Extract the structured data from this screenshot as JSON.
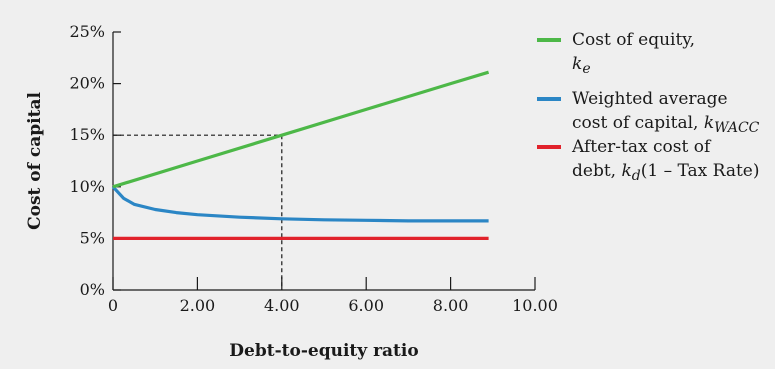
{
  "chart_data": {
    "type": "line",
    "title": "",
    "xlabel": "Debt-to-equity ratio",
    "ylabel": "Cost of capital",
    "xlim": [
      0,
      10
    ],
    "ylim": [
      0,
      25
    ],
    "x_ticks": [
      "0",
      "2.00",
      "4.00",
      "6.00",
      "8.00",
      "10.00"
    ],
    "y_ticks": [
      "0%",
      "5%",
      "10%",
      "15%",
      "20%",
      "25%"
    ],
    "grid": false,
    "legend_position": "right",
    "series": [
      {
        "key": "equity",
        "color": "#4db848",
        "legend": [
          "Cost of equity, ",
          ""
        ],
        "legend_sym": "k",
        "legend_sub": "e",
        "x": [
          0,
          2,
          4,
          6,
          8,
          8.9
        ],
        "values": [
          10,
          12.5,
          15,
          17.5,
          20,
          21.1
        ]
      },
      {
        "key": "wacc",
        "color": "#2b86c5",
        "legend": [
          "Weighted average",
          "cost of capital, "
        ],
        "legend_sym": "k",
        "legend_sub": "WACC",
        "x": [
          0,
          0.25,
          0.5,
          1,
          1.5,
          2,
          3,
          4,
          5,
          6,
          7,
          8,
          8.9
        ],
        "values": [
          10,
          8.9,
          8.3,
          7.8,
          7.5,
          7.3,
          7.05,
          6.9,
          6.8,
          6.75,
          6.7,
          6.7,
          6.7
        ]
      },
      {
        "key": "debt",
        "color": "#e1222b",
        "legend": [
          "After-tax cost of",
          "debt, "
        ],
        "legend_sym": "k",
        "legend_sub": "d",
        "legend_tail": "(1 – Tax Rate)",
        "x": [
          0,
          8.9
        ],
        "values": [
          5,
          5
        ]
      }
    ],
    "annotation": {
      "x": 4,
      "y": 15,
      "style": "dashed reference lines"
    }
  }
}
